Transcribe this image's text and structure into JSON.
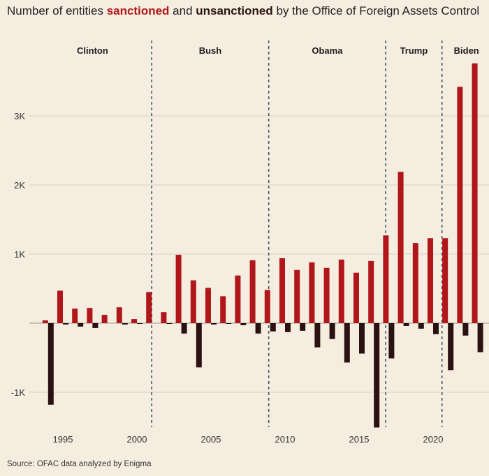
{
  "title": {
    "prefix": "Number of entities ",
    "sanctioned_word": "sanctioned",
    "middle": " and ",
    "unsanctioned_word": "unsanctioned",
    "suffix": " by the Office of Foreign Assets Control"
  },
  "source": "Source: OFAC data analyzed by Enigma",
  "colors": {
    "sanctioned": "#b0161a",
    "unsanctioned": "#2a1212",
    "background": "#f5eee0",
    "grid": "#d9d2c4",
    "divider": "#3f5566"
  },
  "chart_data": {
    "type": "bar",
    "title": "Number of entities sanctioned and unsanctioned by the Office of Foreign Assets Control",
    "xlabel": "",
    "ylabel": "",
    "ylim": [
      -1500,
      3800
    ],
    "y_ticks": [
      -1000,
      1000,
      2000,
      3000
    ],
    "y_tick_labels": [
      "-1K",
      "1K",
      "2K",
      "3K"
    ],
    "x_ticks": [
      1995,
      2000,
      2005,
      2010,
      2015,
      2020
    ],
    "x_tick_labels": [
      "1995",
      "2000",
      "2005",
      "2010",
      "2015",
      "2020"
    ],
    "categories": [
      1994,
      1995,
      1996,
      1997,
      1998,
      1999,
      2000,
      2001,
      2002,
      2003,
      2004,
      2005,
      2006,
      2007,
      2008,
      2009,
      2010,
      2011,
      2012,
      2013,
      2014,
      2015,
      2016,
      2017,
      2018,
      2019,
      2020,
      2021,
      2022,
      2023
    ],
    "series": [
      {
        "name": "sanctioned",
        "values": [
          40,
          470,
          210,
          220,
          120,
          230,
          60,
          450,
          160,
          990,
          620,
          510,
          390,
          690,
          910,
          480,
          940,
          770,
          880,
          800,
          920,
          730,
          900,
          1270,
          2190,
          1160,
          1230,
          1230,
          3420,
          3760
        ]
      },
      {
        "name": "unsanctioned",
        "values": [
          -1180,
          -20,
          -50,
          -70,
          0,
          -20,
          -10,
          0,
          -10,
          -150,
          -640,
          -20,
          -10,
          -30,
          -150,
          -120,
          -130,
          -110,
          -350,
          -230,
          -570,
          -440,
          -1510,
          -510,
          -40,
          -80,
          -160,
          -680,
          -180,
          -420
        ]
      }
    ],
    "eras": [
      {
        "name": "Clinton",
        "start": 1993.0,
        "end": 2001.0
      },
      {
        "name": "Bush",
        "start": 2001.0,
        "end": 2008.9
      },
      {
        "name": "Obama",
        "start": 2008.9,
        "end": 2016.8
      },
      {
        "name": "Trump",
        "start": 2016.8,
        "end": 2020.6
      },
      {
        "name": "Biden",
        "start": 2020.6,
        "end": 2023.9
      }
    ],
    "dividers": [
      2001.0,
      2008.9,
      2016.8,
      2020.6
    ]
  }
}
